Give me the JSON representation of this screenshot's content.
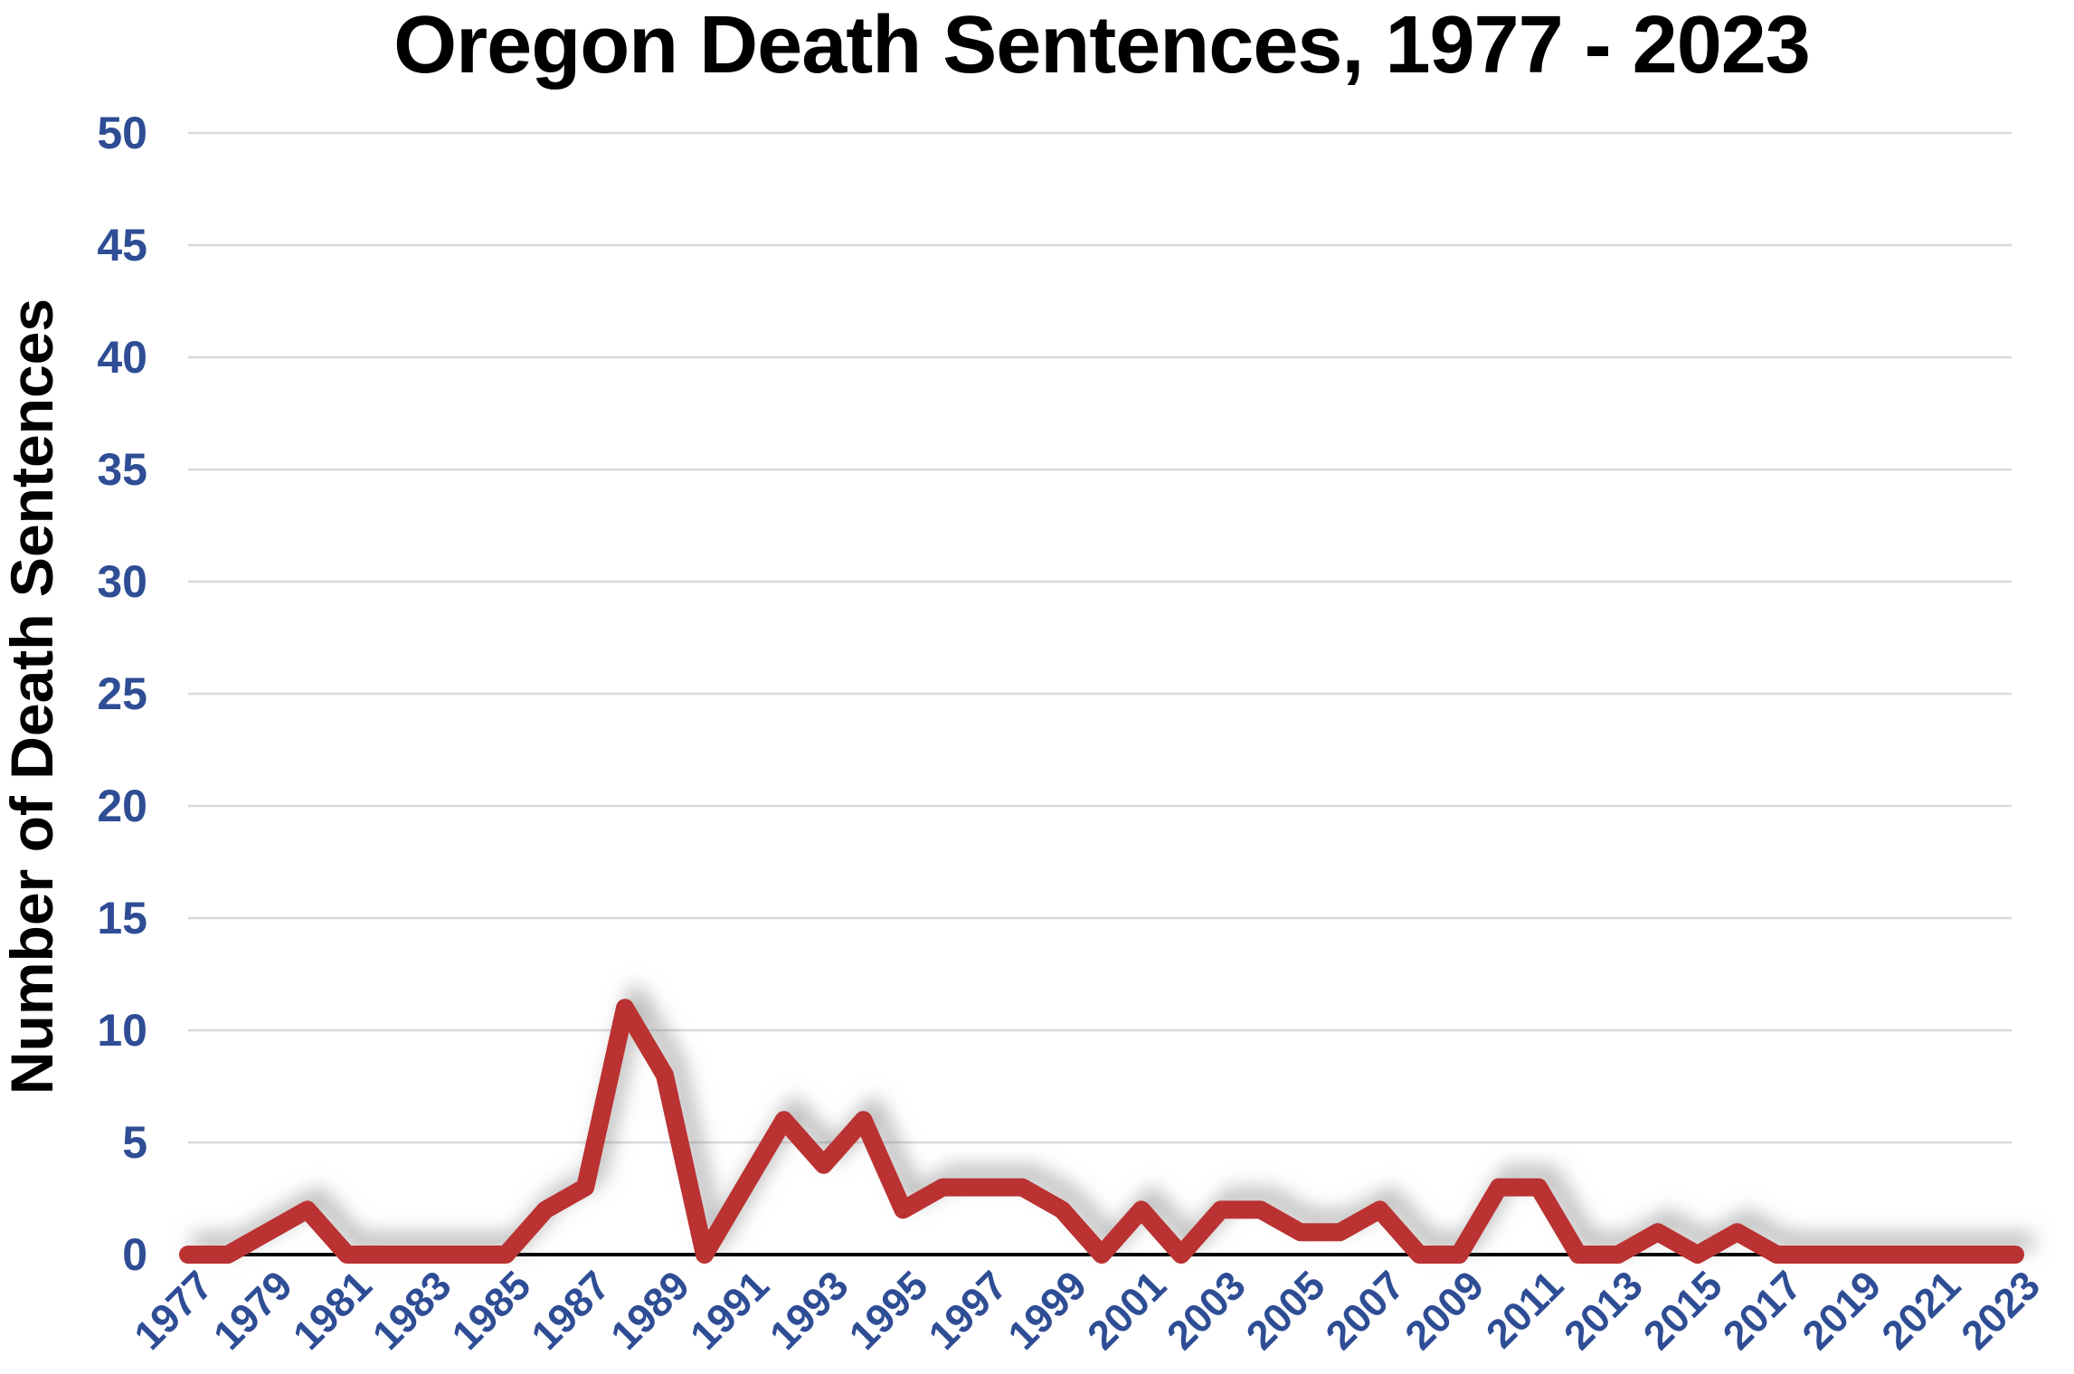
{
  "title": "Oregon Death Sentences, 1977 - 2023",
  "y_axis_label": "Number of Death Sentences",
  "colors": {
    "label_blue": "#2E4D94",
    "line_red": "#BB3330",
    "gridline_gray": "#D9D9D9",
    "axis_black": "#000000",
    "background": "#FFFFFF"
  },
  "chart_data": {
    "type": "line",
    "title": "Oregon Death Sentences, 1977 - 2023",
    "xlabel": "",
    "ylabel": "Number of Death Sentences",
    "x": [
      1977,
      1978,
      1979,
      1980,
      1981,
      1982,
      1983,
      1984,
      1985,
      1986,
      1987,
      1988,
      1989,
      1990,
      1991,
      1992,
      1993,
      1994,
      1995,
      1996,
      1997,
      1998,
      1999,
      2000,
      2001,
      2002,
      2003,
      2004,
      2005,
      2006,
      2007,
      2008,
      2009,
      2010,
      2011,
      2012,
      2013,
      2014,
      2015,
      2016,
      2017,
      2018,
      2019,
      2020,
      2021,
      2022,
      2023
    ],
    "values": [
      0,
      0,
      1,
      2,
      0,
      0,
      0,
      0,
      0,
      2,
      3,
      11,
      8,
      0,
      3,
      6,
      4,
      6,
      2,
      3,
      3,
      3,
      2,
      0,
      2,
      0,
      2,
      2,
      1,
      1,
      2,
      0,
      0,
      3,
      3,
      0,
      0,
      1,
      0,
      1,
      0,
      0,
      0,
      0,
      0,
      0,
      0
    ],
    "ylim": [
      0,
      50
    ],
    "ytick_step": 5,
    "ytick_labels": [
      "0",
      "5",
      "10",
      "15",
      "20",
      "25",
      "30",
      "35",
      "40",
      "45",
      "50"
    ],
    "xtick_labels": [
      "1977",
      "1979",
      "1981",
      "1983",
      "1985",
      "1987",
      "1989",
      "1991",
      "1993",
      "1995",
      "1997",
      "1999",
      "2001",
      "2003",
      "2005",
      "2007",
      "2009",
      "2011",
      "2013",
      "2015",
      "2017",
      "2019",
      "2021",
      "2023"
    ],
    "grid": "horizontal",
    "legend_position": "none",
    "series_name": "Death Sentences"
  }
}
